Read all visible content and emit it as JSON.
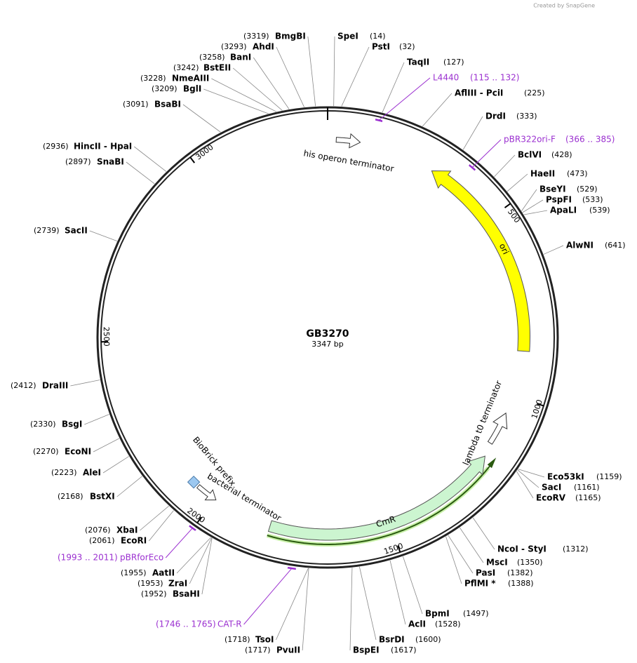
{
  "branding": "Created by SnapGene",
  "plasmid": {
    "name": "GB3270",
    "length": "3347 bp"
  },
  "ruler": [
    500,
    1000,
    1500,
    2000,
    2500,
    3000
  ],
  "features": [
    {
      "name": "his operon terminator"
    },
    {
      "name": "ori"
    },
    {
      "name": "lambda t0 terminator"
    },
    {
      "name": "CmR"
    },
    {
      "name": "BioBrick prefix"
    },
    {
      "name": "bacterial terminator"
    }
  ],
  "primers": [
    {
      "name": "L4440",
      "start": 115,
      "end": 132,
      "range": "(115 .. 132)"
    },
    {
      "name": "pBR322ori-F",
      "start": 366,
      "end": 385,
      "range": "(366 .. 385)"
    },
    {
      "name": "pBRforEco",
      "start": 1993,
      "end": 2011,
      "range": "(1993 .. 2011)"
    },
    {
      "name": "CAT-R",
      "start": 1746,
      "end": 1765,
      "range": "(1746 .. 1765)"
    }
  ],
  "sites": [
    {
      "name": "SpeI",
      "position": {
        "value": 14,
        "label": "(14)"
      }
    },
    {
      "name": "PstI",
      "position": {
        "value": 32,
        "label": "(32)"
      }
    },
    {
      "name": "TaqII",
      "position": {
        "value": 127,
        "label": "(127)"
      }
    },
    {
      "name": "AflIII - PciI",
      "position": {
        "value": 225,
        "label": "(225)"
      }
    },
    {
      "name": "DrdI",
      "position": {
        "value": 333,
        "label": "(333)"
      }
    },
    {
      "name": "BclVI",
      "position": {
        "value": 428,
        "label": "(428)"
      }
    },
    {
      "name": "HaeII",
      "position": {
        "value": 473,
        "label": "(473)"
      }
    },
    {
      "name": "BseYI",
      "position": {
        "value": 529,
        "label": "(529)"
      }
    },
    {
      "name": "PspFI",
      "position": {
        "value": 533,
        "label": "(533)"
      }
    },
    {
      "name": "ApaLI",
      "position": {
        "value": 539,
        "label": "(539)"
      }
    },
    {
      "name": "AlwNI",
      "position": {
        "value": 641,
        "label": "(641)"
      }
    },
    {
      "name": "Eco53kI",
      "position": {
        "value": 1159,
        "label": "(1159)"
      }
    },
    {
      "name": "SacI",
      "position": {
        "value": 1161,
        "label": "(1161)"
      }
    },
    {
      "name": "EcoRV",
      "position": {
        "value": 1165,
        "label": "(1165)"
      }
    },
    {
      "name": "NcoI - StyI",
      "position": {
        "value": 1312,
        "label": "(1312)"
      }
    },
    {
      "name": "MscI",
      "position": {
        "value": 1350,
        "label": "(1350)"
      }
    },
    {
      "name": "PasI",
      "position": {
        "value": 1382,
        "label": "(1382)"
      }
    },
    {
      "name": "PflMI *",
      "position": {
        "value": 1388,
        "label": "(1388)"
      }
    },
    {
      "name": "BpmI",
      "position": {
        "value": 1497,
        "label": "(1497)"
      }
    },
    {
      "name": "AclI",
      "position": {
        "value": 1528,
        "label": "(1528)"
      }
    },
    {
      "name": "BsrDI",
      "position": {
        "value": 1600,
        "label": "(1600)"
      }
    },
    {
      "name": "BspEI",
      "position": {
        "value": 1617,
        "label": "(1617)"
      }
    },
    {
      "name": "PvuII",
      "position": {
        "value": 1717,
        "label": "(1717)"
      }
    },
    {
      "name": "TsoI",
      "position": {
        "value": 1718,
        "label": "(1718)"
      }
    },
    {
      "name": "BsaHI",
      "position": {
        "value": 1952,
        "label": "(1952)"
      }
    },
    {
      "name": "ZraI",
      "position": {
        "value": 1953,
        "label": "(1953)"
      }
    },
    {
      "name": "AatII",
      "position": {
        "value": 1955,
        "label": "(1955)"
      }
    },
    {
      "name": "EcoRI",
      "position": {
        "value": 2061,
        "label": "(2061)"
      }
    },
    {
      "name": "XbaI",
      "position": {
        "value": 2076,
        "label": "(2076)"
      }
    },
    {
      "name": "BstXI",
      "position": {
        "value": 2168,
        "label": "(2168)"
      }
    },
    {
      "name": "AleI",
      "position": {
        "value": 2223,
        "label": "(2223)"
      }
    },
    {
      "name": "EcoNI",
      "position": {
        "value": 2270,
        "label": "(2270)"
      }
    },
    {
      "name": "BsgI",
      "position": {
        "value": 2330,
        "label": "(2330)"
      }
    },
    {
      "name": "DraIII",
      "position": {
        "value": 2412,
        "label": "(2412)"
      }
    },
    {
      "name": "SacII",
      "position": {
        "value": 2739,
        "label": "(2739)"
      }
    },
    {
      "name": "SnaBI",
      "position": {
        "value": 2897,
        "label": "(2897)"
      }
    },
    {
      "name": "HincII - HpaI",
      "position": {
        "value": 2936,
        "label": "(2936)"
      }
    },
    {
      "name": "BsaBI",
      "position": {
        "value": 3091,
        "label": "(3091)"
      }
    },
    {
      "name": "BglI",
      "position": {
        "value": 3209,
        "label": "(3209)"
      }
    },
    {
      "name": "NmeAIII",
      "position": {
        "value": 3228,
        "label": "(3228)"
      }
    },
    {
      "name": "BstEII",
      "position": {
        "value": 3242,
        "label": "(3242)"
      }
    },
    {
      "name": "BanI",
      "position": {
        "value": 3258,
        "label": "(3258)"
      }
    },
    {
      "name": "AhdI",
      "position": {
        "value": 3293,
        "label": "(3293)"
      }
    },
    {
      "name": "BmgBI",
      "position": {
        "value": 3319,
        "label": "(3319)"
      }
    }
  ]
}
